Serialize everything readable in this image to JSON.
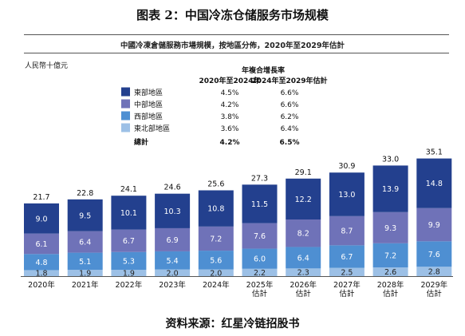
{
  "figure_title": "图表 2：中国冷冻仓储服务市场规模",
  "unit_label": "人民幣十億元",
  "source_text": "资料来源：红星冷链招股书",
  "colors": {
    "dongbu": "#23408e",
    "zhongbu": "#6f72b8",
    "xibu": "#4e8fd2",
    "dongbeibu": "#9cc0e6"
  },
  "chart_data": {
    "type": "bar",
    "stacked": true,
    "title": "中國冷凍倉儲服務市場規模，按地區分佈，2020年至2029年估計",
    "xlabel": "",
    "ylabel": "",
    "grid": false,
    "legend_placement": "top-left",
    "categories": [
      [
        "2020年"
      ],
      [
        "2021年"
      ],
      [
        "2022年"
      ],
      [
        "2023年"
      ],
      [
        "2024年"
      ],
      [
        "2025年",
        "估計"
      ],
      [
        "2026年",
        "估計"
      ],
      [
        "2027年",
        "估計"
      ],
      [
        "2028年",
        "估計"
      ],
      [
        "2029年",
        "估計"
      ]
    ],
    "series": [
      {
        "name": "東北部地區",
        "color": "#9cc0e6",
        "labels": [
          "1.8",
          "1.9",
          "1.9",
          "2.0",
          "2.0",
          "2.2",
          "2.3",
          "2.5",
          "2.6",
          "2.8"
        ],
        "values": [
          1.8,
          1.9,
          1.9,
          2.0,
          2.0,
          2.2,
          2.3,
          2.5,
          2.6,
          2.8
        ]
      },
      {
        "name": "西部地區",
        "color": "#4e8fd2",
        "labels": [
          "4.8",
          "5.1",
          "5.3",
          "5.4",
          "5.6",
          "6.0",
          "6.4",
          "6.7",
          "7.2",
          "7.6"
        ],
        "values": [
          4.8,
          5.1,
          5.3,
          5.4,
          5.6,
          6.0,
          6.4,
          6.7,
          7.2,
          7.6
        ]
      },
      {
        "name": "中部地區",
        "color": "#6f72b8",
        "labels": [
          "6.1",
          "6.4",
          "6.7",
          "6.9",
          "7.2",
          "7.6",
          "8.2",
          "8.7",
          "9.3",
          "9.9"
        ],
        "values": [
          6.1,
          6.4,
          6.7,
          6.9,
          7.2,
          7.6,
          8.2,
          8.7,
          9.3,
          9.9
        ]
      },
      {
        "name": "東部地區",
        "color": "#23408e",
        "labels": [
          "9.0",
          "9.5",
          "10.1",
          "10.3",
          "10.8",
          "11.5",
          "12.2",
          "13.0",
          "13.9",
          "14.8"
        ],
        "values": [
          9.0,
          9.5,
          10.1,
          10.3,
          10.8,
          11.5,
          12.2,
          13.0,
          13.9,
          14.8
        ]
      }
    ],
    "totals": [
      "21.7",
      "22.8",
      "24.1",
      "24.6",
      "25.6",
      "27.3",
      "29.1",
      "30.9",
      "33.0",
      "35.1"
    ],
    "cagr_table": {
      "header": "年複合增長率",
      "col1": "2020年至2024年",
      "col2": "2024年至2029年估計",
      "rows": [
        {
          "name": "東部地區",
          "color": "#23408e",
          "c1": "4.5%",
          "c2": "6.6%"
        },
        {
          "name": "中部地區",
          "color": "#6f72b8",
          "c1": "4.2%",
          "c2": "6.6%"
        },
        {
          "name": "西部地區",
          "color": "#4e8fd2",
          "c1": "3.8%",
          "c2": "6.2%"
        },
        {
          "name": "東北部地區",
          "color": "#9cc0e6",
          "c1": "3.6%",
          "c2": "6.4%"
        }
      ],
      "total_row": {
        "name": "總計",
        "c1": "4.2%",
        "c2": "6.5%"
      }
    }
  }
}
